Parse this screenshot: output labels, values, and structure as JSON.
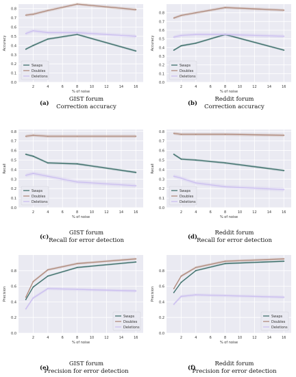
{
  "colors": {
    "swaps": "#3d6f6a",
    "doubles": "#b08a7c",
    "deletions": "#cbbef0",
    "plot_bg": "#eaeaf2",
    "grid": "#ffffff"
  },
  "chart_data": [
    {
      "type": "line",
      "letter": "(a)",
      "caption_lines": [
        "GIST forum",
        "Correction accuracy"
      ],
      "xlabel": "% of noise",
      "ylabel": "Accuracy",
      "xlim": [
        0,
        17
      ],
      "ylim": [
        0,
        0.85
      ],
      "xticks": [
        2,
        4,
        6,
        8,
        10,
        12,
        14,
        16
      ],
      "yticks": [
        0.0,
        0.1,
        0.2,
        0.3,
        0.4,
        0.5,
        0.6,
        0.7,
        0.8
      ],
      "legend_position": "lower-left",
      "x": [
        1,
        2,
        4,
        8,
        16
      ],
      "series": [
        {
          "name": "Swaps",
          "key": "swaps",
          "values": [
            0.36,
            0.4,
            0.47,
            0.52,
            0.34
          ]
        },
        {
          "name": "Doubles",
          "key": "doubles",
          "values": [
            0.73,
            0.74,
            0.78,
            0.85,
            0.79
          ]
        },
        {
          "name": "Deletions",
          "key": "deletions",
          "values": [
            0.53,
            0.56,
            0.54,
            0.54,
            0.5
          ]
        }
      ]
    },
    {
      "type": "line",
      "letter": "(b)",
      "caption_lines": [
        "Reddit forum",
        "Correction accuracy"
      ],
      "xlabel": "% of noise",
      "ylabel": "Accuracy",
      "xlim": [
        0,
        17
      ],
      "ylim": [
        0,
        0.9
      ],
      "xticks": [
        2,
        4,
        6,
        8,
        10,
        12,
        14,
        16
      ],
      "yticks": [
        0.0,
        0.1,
        0.2,
        0.3,
        0.4,
        0.5,
        0.6,
        0.7,
        0.8
      ],
      "legend_position": "lower-left",
      "x": [
        1,
        2,
        4,
        8,
        16
      ],
      "series": [
        {
          "name": "Swaps",
          "key": "swaps",
          "values": [
            0.37,
            0.42,
            0.45,
            0.55,
            0.37
          ]
        },
        {
          "name": "Doubles",
          "key": "doubles",
          "values": [
            0.74,
            0.77,
            0.8,
            0.86,
            0.83
          ]
        },
        {
          "name": "Deletions",
          "key": "deletions",
          "values": [
            0.52,
            0.54,
            0.55,
            0.55,
            0.53
          ]
        }
      ]
    },
    {
      "type": "line",
      "letter": "(c)",
      "caption_lines": [
        "GIST forum",
        "Recall for error detection"
      ],
      "xlabel": "% of noise",
      "ylabel": "Recall",
      "xlim": [
        0,
        17
      ],
      "ylim": [
        0,
        0.82
      ],
      "xticks": [
        2,
        4,
        6,
        8,
        10,
        12,
        14,
        16
      ],
      "yticks": [
        0.0,
        0.1,
        0.2,
        0.3,
        0.4,
        0.5,
        0.6,
        0.7,
        0.8
      ],
      "legend_position": "lower-left",
      "x": [
        1,
        2,
        4,
        8,
        16
      ],
      "series": [
        {
          "name": "Swaps",
          "key": "swaps",
          "values": [
            0.56,
            0.54,
            0.47,
            0.46,
            0.37
          ]
        },
        {
          "name": "Doubles",
          "key": "doubles",
          "values": [
            0.75,
            0.76,
            0.75,
            0.75,
            0.75
          ]
        },
        {
          "name": "Deletions",
          "key": "deletions",
          "values": [
            0.34,
            0.36,
            0.33,
            0.27,
            0.23
          ]
        }
      ]
    },
    {
      "type": "line",
      "letter": "(d)",
      "caption_lines": [
        "Reddit forum",
        "Recall for error detection"
      ],
      "xlabel": "% of noise",
      "ylabel": "Recall",
      "xlim": [
        0,
        17
      ],
      "ylim": [
        0,
        0.82
      ],
      "xticks": [
        2,
        4,
        6,
        8,
        10,
        12,
        14,
        16
      ],
      "yticks": [
        0.0,
        0.1,
        0.2,
        0.3,
        0.4,
        0.5,
        0.6,
        0.7,
        0.8
      ],
      "legend_position": "lower-left",
      "x": [
        1,
        2,
        4,
        8,
        16
      ],
      "series": [
        {
          "name": "Swaps",
          "key": "swaps",
          "values": [
            0.56,
            0.51,
            0.5,
            0.47,
            0.39
          ]
        },
        {
          "name": "Doubles",
          "key": "doubles",
          "values": [
            0.78,
            0.77,
            0.77,
            0.77,
            0.76
          ]
        },
        {
          "name": "Deletions",
          "key": "deletions",
          "values": [
            0.33,
            0.31,
            0.26,
            0.22,
            0.19
          ]
        }
      ]
    },
    {
      "type": "line",
      "letter": "(e)",
      "caption_lines": [
        "GIST forum",
        "Precision for error detection"
      ],
      "xlabel": "% of noise",
      "ylabel": "Precision",
      "xlim": [
        0,
        17
      ],
      "ylim": [
        0,
        1.0
      ],
      "xticks": [
        2,
        4,
        6,
        8,
        10,
        12,
        14,
        16
      ],
      "yticks": [
        0.0,
        0.2,
        0.4,
        0.6,
        0.8
      ],
      "legend_position": "lower-right",
      "x": [
        1,
        2,
        4,
        8,
        16
      ],
      "series": [
        {
          "name": "Swaps",
          "key": "swaps",
          "values": [
            0.43,
            0.59,
            0.73,
            0.84,
            0.91
          ]
        },
        {
          "name": "Doubles",
          "key": "doubles",
          "values": [
            0.46,
            0.66,
            0.81,
            0.89,
            0.95
          ]
        },
        {
          "name": "Deletions",
          "key": "deletions",
          "values": [
            0.31,
            0.45,
            0.57,
            0.56,
            0.54
          ]
        }
      ]
    },
    {
      "type": "line",
      "letter": "(f)",
      "caption_lines": [
        "Reddit forum",
        "Precision for error detection"
      ],
      "xlabel": "% of noise",
      "ylabel": "Precision",
      "xlim": [
        0,
        17
      ],
      "ylim": [
        0,
        1.0
      ],
      "xticks": [
        2,
        4,
        6,
        8,
        10,
        12,
        14,
        16
      ],
      "yticks": [
        0.0,
        0.2,
        0.4,
        0.6,
        0.8
      ],
      "legend_position": "lower-right",
      "x": [
        1,
        2,
        4,
        8,
        16
      ],
      "series": [
        {
          "name": "Swaps",
          "key": "swaps",
          "values": [
            0.52,
            0.65,
            0.8,
            0.89,
            0.92
          ]
        },
        {
          "name": "Doubles",
          "key": "doubles",
          "values": [
            0.57,
            0.73,
            0.84,
            0.92,
            0.95
          ]
        },
        {
          "name": "Deletions",
          "key": "deletions",
          "values": [
            0.37,
            0.47,
            0.49,
            0.48,
            0.46
          ]
        }
      ]
    }
  ]
}
